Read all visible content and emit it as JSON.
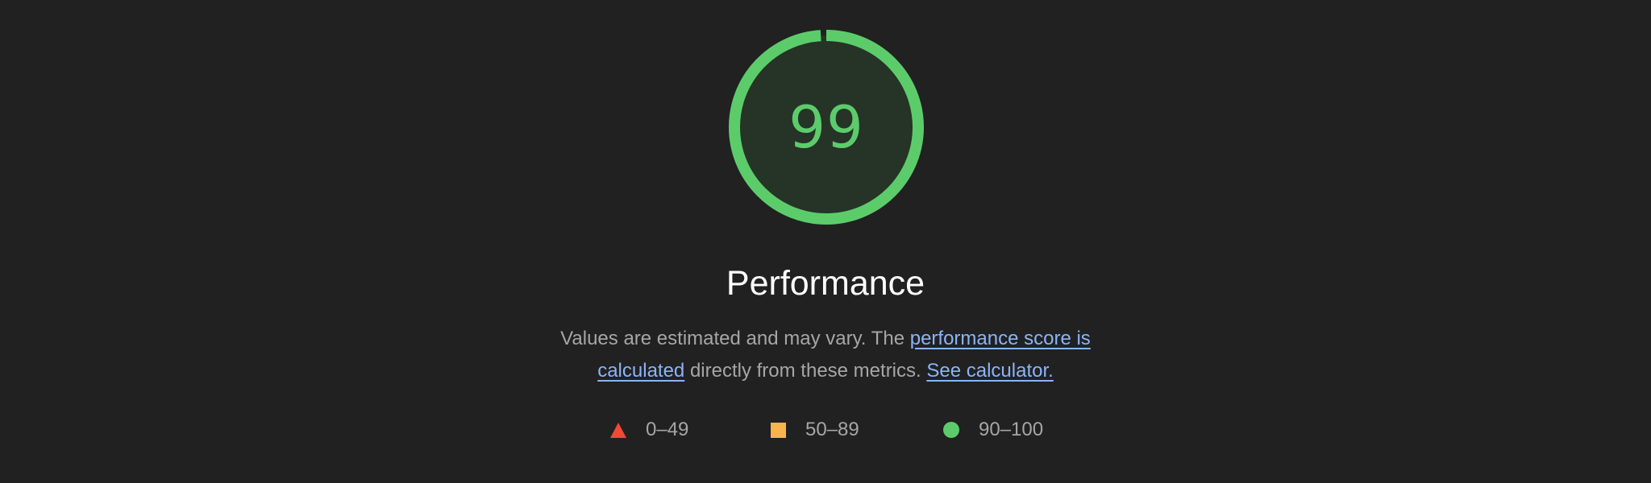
{
  "gauge": {
    "score": "99",
    "fraction": 0.99,
    "color": "#5ccc6b",
    "fill_color": "#263327"
  },
  "title": "Performance",
  "description": {
    "text_1": "Values are estimated and may vary. The ",
    "link_1": "performance score is calculated",
    "text_2": " directly from these metrics. ",
    "link_2": "See calculator."
  },
  "legend": [
    {
      "shape": "triangle",
      "range": "0–49",
      "color": "#f2483a"
    },
    {
      "shape": "square",
      "range": "50–89",
      "color": "#f7b54b"
    },
    {
      "shape": "circle",
      "range": "90–100",
      "color": "#5ccc6b"
    }
  ],
  "colors": {
    "background": "#212121",
    "link": "#8ab4f8",
    "muted_text": "#a6a6a6"
  }
}
